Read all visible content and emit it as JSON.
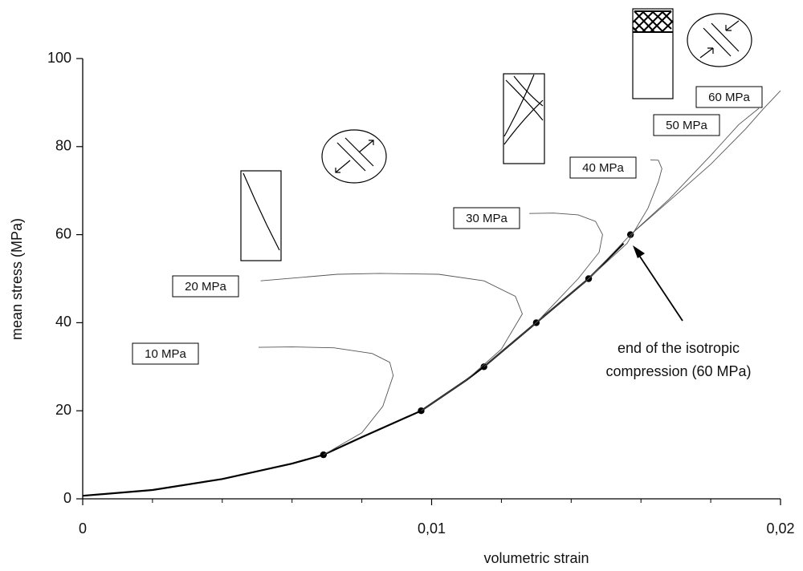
{
  "chart_data": {
    "type": "line",
    "xlabel": "volumetric strain",
    "ylabel": "mean stress (MPa)",
    "xlim": [
      0,
      0.02
    ],
    "ylim": [
      0,
      100
    ],
    "xticks": [
      0,
      {
        "value": 0.01,
        "label": "0,01"
      },
      {
        "value": 0.02,
        "label": "0,02"
      }
    ],
    "xminorticks": [
      0.002,
      0.004,
      0.006,
      0.008,
      0.012,
      0.014,
      0.016,
      0.018
    ],
    "yticks": [
      0,
      20,
      40,
      60,
      80,
      100
    ],
    "annotation": [
      "end of the isotropic",
      "compression (60 MPa)"
    ],
    "series": [
      {
        "color": "#000000",
        "width": 2.2,
        "x": [
          0,
          0.002,
          0.004,
          0.006,
          0.0069,
          0.008,
          0.0097,
          0.011,
          0.0115,
          0.013,
          0.0145,
          0.0155
        ],
        "values": [
          0.7,
          2,
          4.5,
          8,
          10,
          14,
          20,
          27,
          30,
          40,
          50,
          58
        ]
      },
      {
        "color": "#000000",
        "markers": true,
        "x": [
          0.0069,
          0.0097,
          0.0115,
          0.013,
          0.0145,
          0.0157
        ],
        "values": [
          10,
          20,
          30,
          40,
          50,
          60
        ]
      },
      {
        "name": "10 MPa",
        "color": "#555555",
        "width": 0.9,
        "x": [
          0.0069,
          0.008,
          0.0086,
          0.0089,
          0.0088,
          0.0083,
          0.0072,
          0.006,
          0.00504
        ],
        "values": [
          10,
          15,
          21,
          28,
          31,
          33,
          34.3,
          34.5,
          34.4
        ]
      },
      {
        "name": "20 MPa",
        "color": "#555555",
        "width": 0.9,
        "x": [
          0.0097,
          0.011,
          0.012,
          0.0126,
          0.0124,
          0.0115,
          0.0102,
          0.0085,
          0.0073,
          0.0051
        ],
        "values": [
          20,
          27,
          34,
          42,
          46,
          49.5,
          51,
          51.2,
          51,
          49.5
        ]
      },
      {
        "name": "30 MPa",
        "color": "#555555",
        "width": 0.9,
        "x": [
          0.0115,
          0.013,
          0.0142,
          0.0148,
          0.0149,
          0.0147,
          0.0142,
          0.0135,
          0.0128
        ],
        "values": [
          30,
          40,
          50,
          56,
          60,
          63,
          64.5,
          64.9,
          64.8
        ]
      },
      {
        "name": "40 MPa",
        "color": "#555555",
        "width": 0.9,
        "x": [
          0.013,
          0.0145,
          0.0156,
          0.0162,
          0.0165,
          0.0166,
          0.0165,
          0.01627
        ],
        "values": [
          40,
          50,
          58,
          66,
          72,
          75,
          76.9,
          77
        ]
      },
      {
        "name": "50 MPa",
        "color": "#555555",
        "width": 0.9,
        "x": [
          0.0145,
          0.0157,
          0.0168,
          0.018,
          0.0188,
          0.01938
        ],
        "values": [
          50,
          60,
          68,
          78,
          85,
          88.7
        ]
      },
      {
        "name": "60 MPa",
        "color": "#555555",
        "width": 0.9,
        "x": [
          0.0157,
          0.017,
          0.018,
          0.019,
          0.0195,
          0.02
        ],
        "values": [
          60,
          69,
          76,
          84,
          88.5,
          92.7
        ]
      }
    ]
  }
}
